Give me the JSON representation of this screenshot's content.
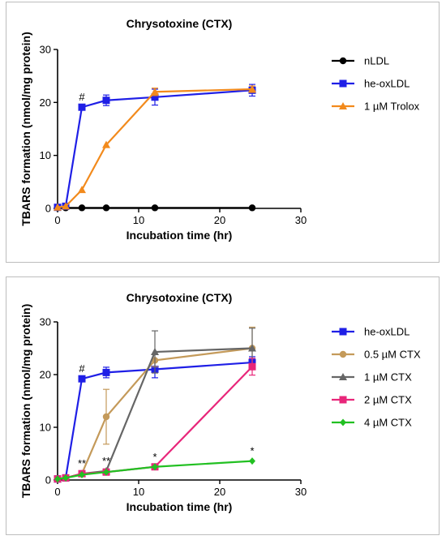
{
  "chart_data": [
    {
      "type": "line",
      "title": "Chrysotoxine (CTX)",
      "xlabel": "Incubation time (hr)",
      "ylabel": "TBARS formation (nmol/mg protein)",
      "xlim": [
        0,
        30
      ],
      "ylim": [
        0,
        30
      ],
      "xticks": [
        "0",
        "10",
        "20",
        "30"
      ],
      "yticks": [
        "0",
        "10",
        "20",
        "30"
      ],
      "grid": false,
      "legend_position": "right",
      "series": [
        {
          "name": "nLDL",
          "color": "#000000",
          "marker": "circle",
          "x": [
            0,
            1,
            3,
            6,
            12,
            24
          ],
          "y": [
            0.1,
            0.1,
            0.1,
            0.1,
            0.1,
            0.1
          ],
          "err": [
            0,
            0,
            0,
            0,
            0,
            0
          ]
        },
        {
          "name": "he-oxLDL",
          "color": "#1f1fe6",
          "marker": "square",
          "x": [
            0,
            1,
            3,
            6,
            12,
            24
          ],
          "y": [
            0.2,
            0.4,
            19.1,
            20.4,
            21.0,
            22.3
          ],
          "err": [
            0,
            0,
            0.4,
            1.0,
            1.5,
            1.1
          ]
        },
        {
          "name": "1 µM Trolox",
          "color": "#f28a1c",
          "marker": "triangle",
          "x": [
            0,
            1,
            3,
            6,
            12,
            24
          ],
          "y": [
            0.2,
            0.4,
            3.5,
            12.0,
            22.0,
            22.5
          ],
          "err": [
            0,
            0,
            0,
            0,
            0.7,
            0.6
          ]
        }
      ],
      "annotations": [
        {
          "text": "#",
          "x": 3,
          "y": 19.1
        }
      ]
    },
    {
      "type": "line",
      "title": "Chrysotoxine (CTX)",
      "xlabel": "Incubation time (hr)",
      "ylabel": "TBARS formation (nmol/mg protein)",
      "xlim": [
        0,
        30
      ],
      "ylim": [
        0,
        30
      ],
      "xticks": [
        "0",
        "10",
        "20",
        "30"
      ],
      "yticks": [
        "0",
        "10",
        "20",
        "30"
      ],
      "grid": false,
      "legend_position": "right",
      "series": [
        {
          "name": "he-oxLDL",
          "color": "#1f1fe6",
          "marker": "square",
          "x": [
            0,
            1,
            3,
            6,
            12,
            24
          ],
          "y": [
            0.2,
            0.4,
            19.2,
            20.4,
            21.0,
            22.3
          ],
          "err": [
            0,
            0,
            0.4,
            1.0,
            1.6,
            1.1
          ]
        },
        {
          "name": "0.5 µM CTX",
          "color": "#c49a5a",
          "marker": "circle",
          "x": [
            0,
            1,
            3,
            6,
            12,
            24
          ],
          "y": [
            0.2,
            0.4,
            1.2,
            12.0,
            22.7,
            25.0
          ],
          "err": [
            0,
            0,
            0.5,
            5.2,
            1.2,
            4.0
          ]
        },
        {
          "name": "1 µM CTX",
          "color": "#666666",
          "marker": "triangle",
          "x": [
            0,
            1,
            3,
            6,
            12,
            24
          ],
          "y": [
            0.2,
            0.4,
            1.2,
            1.7,
            24.3,
            25.0
          ],
          "err": [
            0,
            0,
            0.3,
            0.4,
            4.0,
            3.8
          ]
        },
        {
          "name": "2 µM CTX",
          "color": "#e8267a",
          "marker": "square",
          "x": [
            0,
            1,
            3,
            6,
            12,
            24
          ],
          "y": [
            0.2,
            0.4,
            1.2,
            1.5,
            2.5,
            21.5
          ],
          "err": [
            0,
            0,
            0,
            0,
            0,
            1.6
          ]
        },
        {
          "name": "4 µM CTX",
          "color": "#22c022",
          "marker": "diamond",
          "x": [
            0,
            1,
            3,
            6,
            12,
            24
          ],
          "y": [
            0.2,
            0.4,
            1.0,
            1.5,
            2.5,
            3.6
          ],
          "err": [
            0,
            0,
            0,
            0,
            0,
            0
          ]
        }
      ],
      "annotations": [
        {
          "text": "#",
          "x": 3,
          "y": 19.2
        },
        {
          "text": "**",
          "x": 3,
          "y": 1.2
        },
        {
          "text": "**",
          "x": 6,
          "y": 1.7
        },
        {
          "text": "*",
          "x": 12,
          "y": 2.5
        },
        {
          "text": "*",
          "x": 24,
          "y": 3.6
        }
      ]
    }
  ]
}
